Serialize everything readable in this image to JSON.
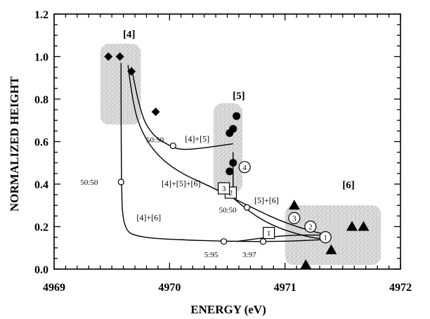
{
  "chart_data": {
    "type": "scatter",
    "xlabel": "ENERGY  (eV)",
    "ylabel": "NORMALIZED  HEIGHT",
    "xlim": [
      4969,
      4972
    ],
    "ylim": [
      0.0,
      1.2
    ],
    "x_ticks": [
      "4969",
      "4970",
      "4971",
      "4972"
    ],
    "y_ticks": [
      "0.0",
      "0.2",
      "0.4",
      "0.6",
      "0.8",
      "1.0",
      "1.2"
    ],
    "x_tick_values": [
      4969,
      4970,
      4971,
      4972
    ],
    "y_tick_values": [
      0.0,
      0.2,
      0.4,
      0.6,
      0.8,
      1.0,
      1.2
    ],
    "grid": false,
    "regions": [
      {
        "label": "[4]",
        "x": [
          4969.4,
          4969.75
        ],
        "y": [
          0.68,
          1.06
        ],
        "label_pos": [
          4969.65,
          1.09
        ]
      },
      {
        "label": "[5]",
        "x": [
          4970.38,
          4970.63
        ],
        "y": [
          0.36,
          0.78
        ],
        "label_pos": [
          4970.6,
          0.8
        ]
      },
      {
        "label": "[6]",
        "x": [
          4971.0,
          4971.83
        ],
        "y": [
          0.02,
          0.3
        ],
        "label_pos": [
          4971.55,
          0.38
        ]
      }
    ],
    "series": [
      {
        "name": "[4]",
        "marker": "diamond",
        "points": [
          [
            4969.47,
            1.0
          ],
          [
            4969.57,
            1.0
          ],
          [
            4969.67,
            0.93
          ],
          [
            4969.88,
            0.74
          ]
        ]
      },
      {
        "name": "[5]",
        "marker": "circle",
        "points": [
          [
            4970.58,
            0.72
          ],
          [
            4970.55,
            0.66
          ],
          [
            4970.52,
            0.64
          ],
          [
            4970.55,
            0.5
          ],
          [
            4970.52,
            0.46
          ]
        ]
      },
      {
        "name": "[6]",
        "marker": "triangle",
        "points": [
          [
            4971.08,
            0.3
          ],
          [
            4971.4,
            0.09
          ],
          [
            4971.58,
            0.2
          ],
          [
            4971.68,
            0.2
          ],
          [
            4971.18,
            0.02
          ]
        ]
      }
    ],
    "curves": [
      {
        "label": "[4]+[5]",
        "points": [
          [
            4969.67,
            0.95
          ],
          [
            4969.74,
            0.74
          ],
          [
            4969.85,
            0.63
          ],
          [
            4970.0,
            0.58
          ],
          [
            4970.1,
            0.56
          ],
          [
            4970.3,
            0.57
          ],
          [
            4970.55,
            0.59
          ]
        ]
      },
      {
        "label": "[4]+[5]+[6]",
        "points": [
          [
            4969.64,
            0.96
          ],
          [
            4969.68,
            0.78
          ],
          [
            4969.76,
            0.64
          ],
          [
            4969.9,
            0.53
          ],
          [
            4970.1,
            0.45
          ],
          [
            4970.35,
            0.39
          ],
          [
            4970.6,
            0.32
          ],
          [
            4970.9,
            0.24
          ],
          [
            4971.15,
            0.19
          ],
          [
            4971.37,
            0.16
          ]
        ]
      },
      {
        "label": "[4]+[6]",
        "points": [
          [
            4969.58,
            0.97
          ],
          [
            4969.58,
            0.41
          ],
          [
            4969.6,
            0.18
          ],
          [
            4969.75,
            0.15
          ],
          [
            4970.0,
            0.14
          ],
          [
            4970.5,
            0.13
          ],
          [
            4971.0,
            0.13
          ],
          [
            4971.37,
            0.14
          ]
        ]
      },
      {
        "label": "",
        "points": [
          [
            4970.55,
            0.55
          ],
          [
            4970.55,
            0.36
          ]
        ]
      },
      {
        "label": "",
        "points": [
          [
            4970.5,
            0.36
          ],
          [
            4970.66,
            0.28
          ],
          [
            4970.9,
            0.2
          ],
          [
            4971.2,
            0.15
          ],
          [
            4971.37,
            0.14
          ]
        ]
      },
      {
        "label": "",
        "points": [
          [
            4970.58,
            0.13
          ],
          [
            4970.95,
            0.16
          ],
          [
            4971.37,
            0.16
          ]
        ]
      }
    ],
    "ratio_markers": [
      {
        "label": "50:50",
        "point": [
          4970.03,
          0.58
        ],
        "label_pos": [
          4969.95,
          0.61
        ]
      },
      {
        "label": "50:50",
        "point": [
          4969.58,
          0.41
        ],
        "label_pos": [
          4969.38,
          0.41
        ]
      },
      {
        "label": "50:50",
        "point": [
          4970.67,
          0.29
        ],
        "label_pos": [
          4970.58,
          0.28
        ]
      },
      {
        "label": "5:95",
        "point": [
          4970.47,
          0.13
        ],
        "label_pos": [
          4970.42,
          0.07
        ]
      },
      {
        "label": "3:97",
        "point": [
          4970.81,
          0.13
        ],
        "label_pos": [
          4970.75,
          0.07
        ]
      }
    ],
    "circled_numbers": [
      {
        "label": "1",
        "point": [
          4971.35,
          0.15
        ]
      },
      {
        "label": "2",
        "point": [
          4971.22,
          0.2
        ]
      },
      {
        "label": "3",
        "point": [
          4971.08,
          0.24
        ]
      },
      {
        "label": "4",
        "point": [
          4970.65,
          0.48
        ]
      }
    ],
    "boxed_numbers": [
      {
        "label": "1",
        "point": [
          4970.86,
          0.17
        ]
      },
      {
        "label": "2",
        "point": [
          4970.53,
          0.36
        ]
      },
      {
        "label": "3",
        "point": [
          4970.47,
          0.38
        ]
      }
    ],
    "curve_labels": [
      {
        "label": "[4]+[5]",
        "pos": [
          4970.24,
          0.6
        ]
      },
      {
        "label": "[4]+[5]+[6]",
        "pos": [
          4970.1,
          0.39
        ]
      },
      {
        "label": "[5]+[6]",
        "pos": [
          4970.84,
          0.31
        ]
      },
      {
        "label": "[4]+[6]",
        "pos": [
          4969.82,
          0.23
        ]
      }
    ]
  }
}
